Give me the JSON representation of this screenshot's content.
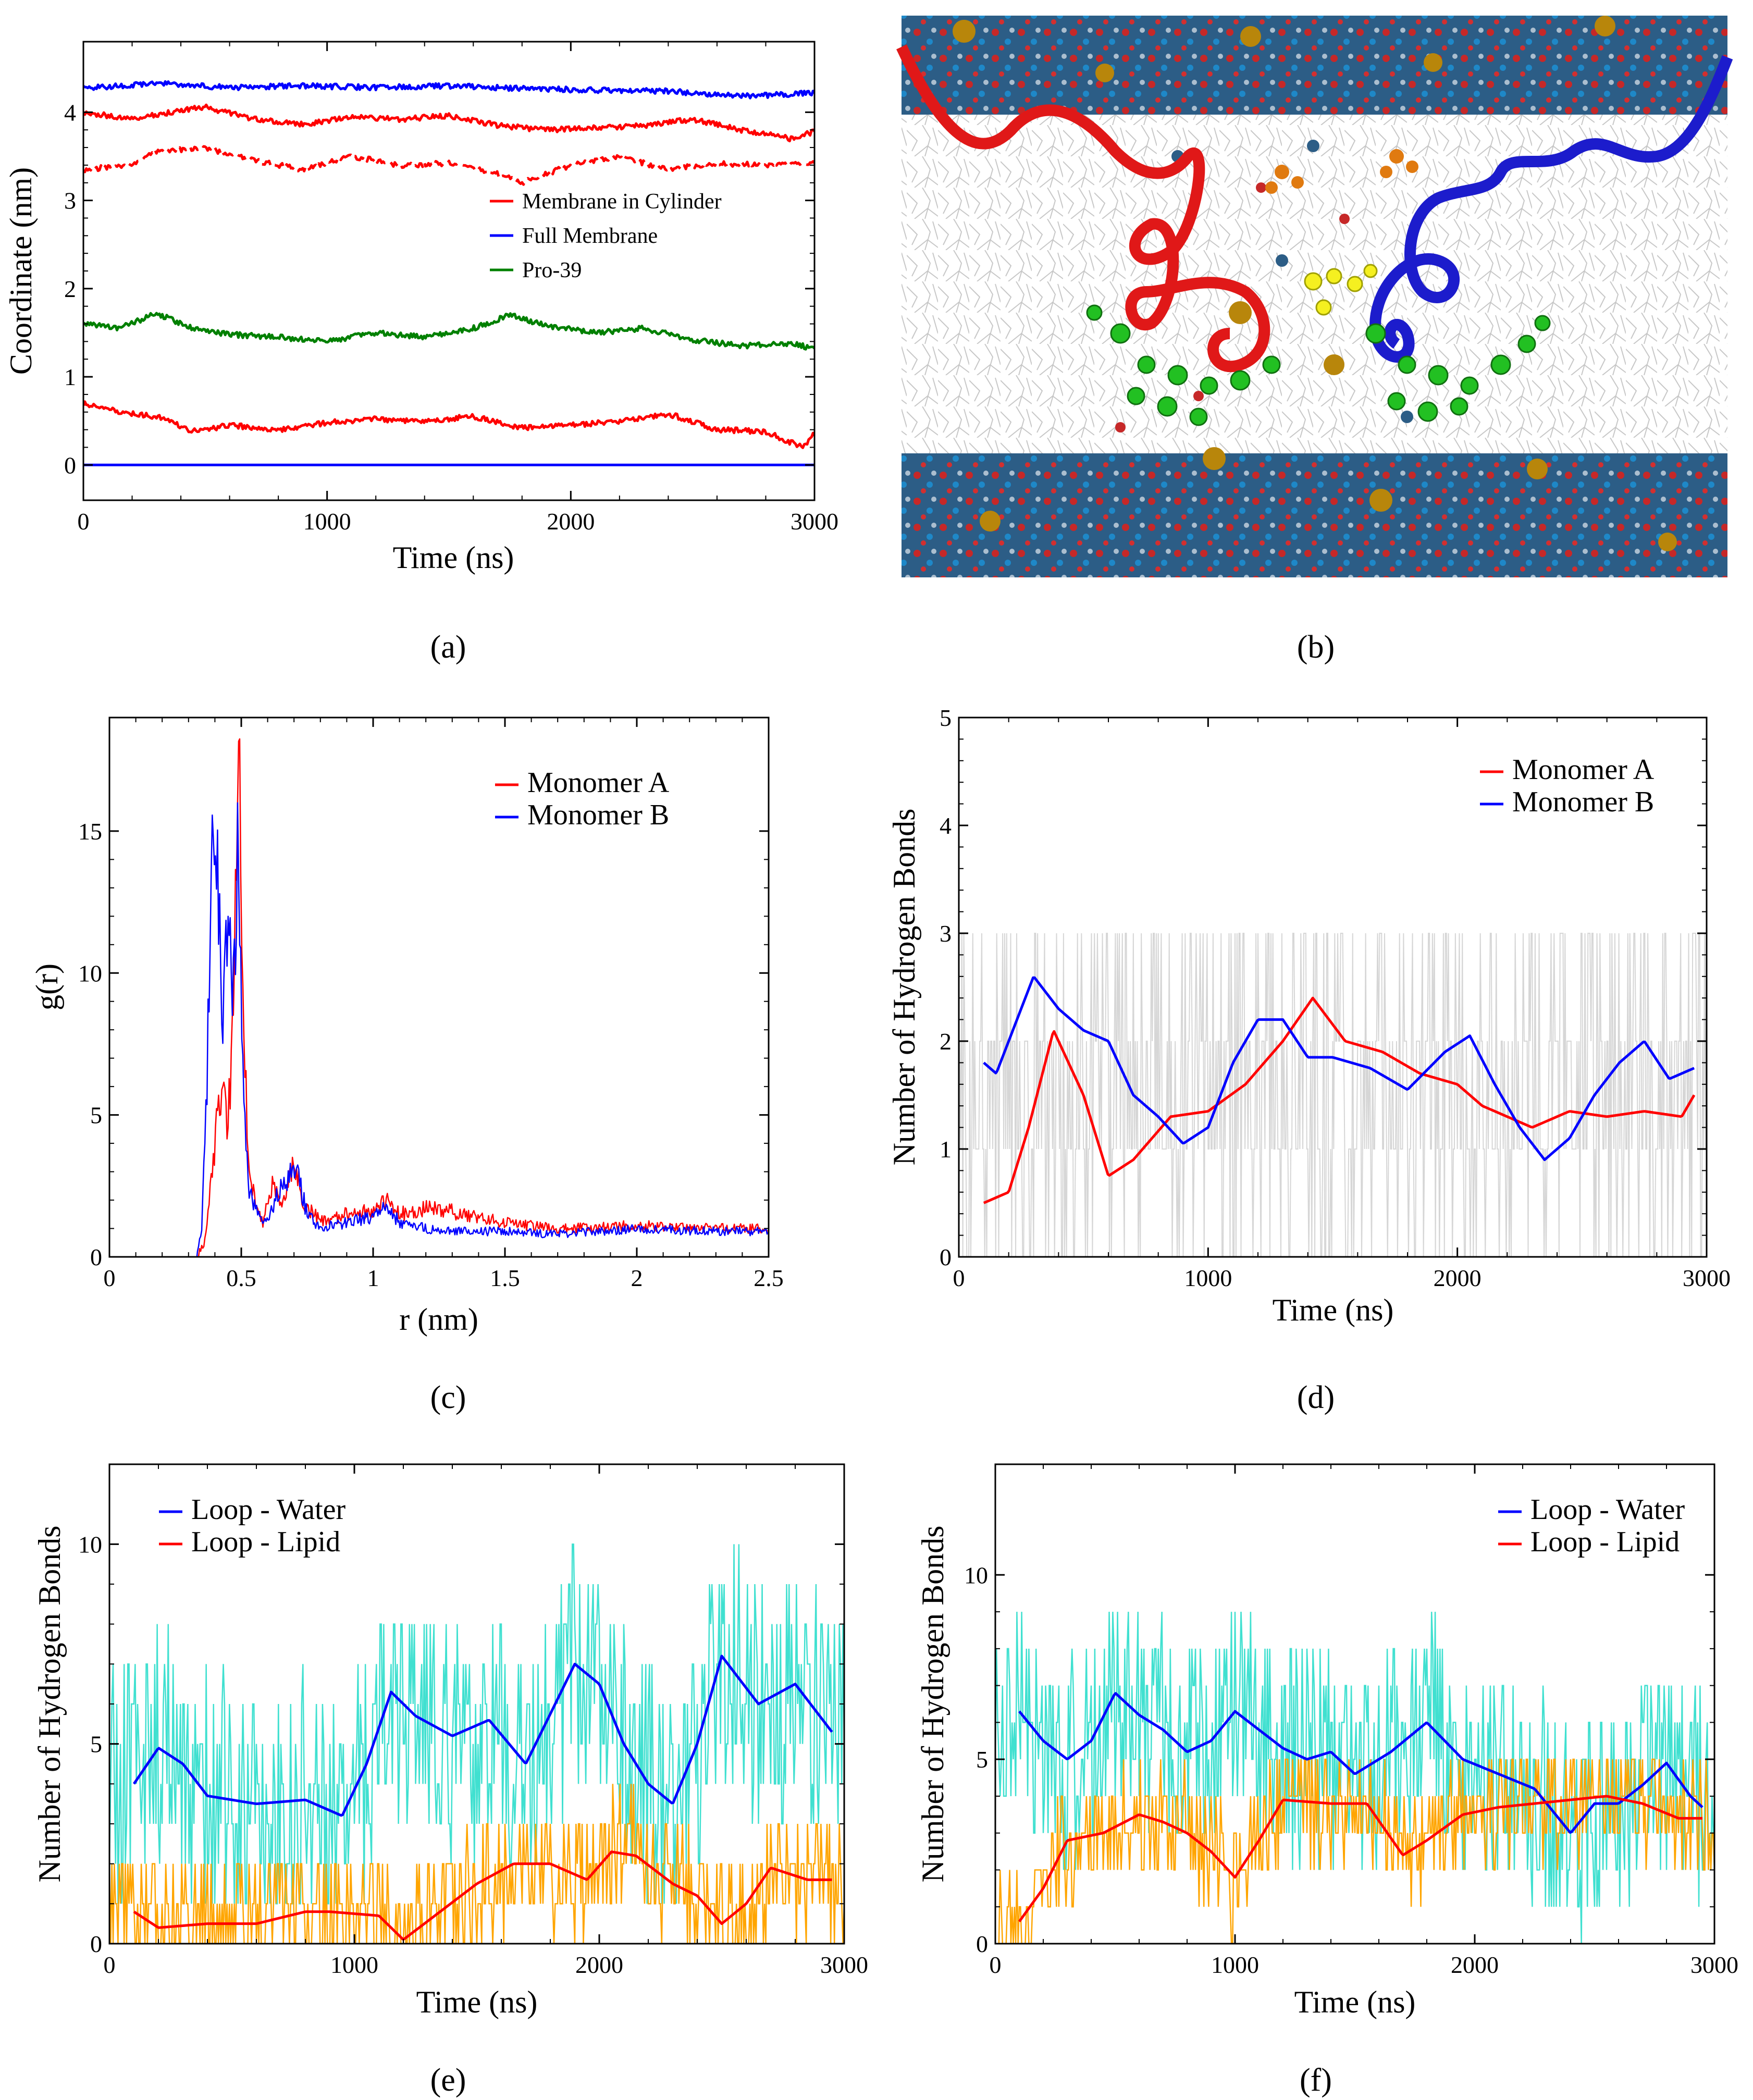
{
  "captions": {
    "a": "(a)",
    "b": "(b)",
    "c": "(c)",
    "d": "(d)",
    "e": "(e)",
    "f": "(f)"
  },
  "colors": {
    "red": "#ff0000",
    "blue": "#0000ff",
    "green": "#008000",
    "cyan": "#40e0d0",
    "orange": "#ffa500",
    "gray": "#d6d6d6"
  },
  "chart_data": [
    {
      "id": "a",
      "type": "line",
      "title": "",
      "xlabel": "Time (ns)",
      "ylabel": "Coordinate (nm)",
      "xlim": [
        0,
        3000
      ],
      "ylim": [
        -0.4,
        4.8
      ],
      "xticks": [
        0,
        1000,
        2000,
        3000
      ],
      "yticks": [
        0,
        1,
        2,
        3,
        4
      ],
      "legend": [
        "Membrane in Cylinder",
        "Full Membrane",
        "Pro-39"
      ],
      "series": [
        {
          "name": "Full Membrane top",
          "legend": 1,
          "color": "#0000ff",
          "x": [
            0,
            300,
            600,
            900,
            1200,
            1500,
            1800,
            2100,
            2400,
            2700,
            3000
          ],
          "y": [
            4.27,
            4.33,
            4.28,
            4.3,
            4.28,
            4.3,
            4.27,
            4.25,
            4.24,
            4.18,
            4.22
          ]
        },
        {
          "name": "Membrane in Cylinder top",
          "legend": 0,
          "color": "#ff0000",
          "x": [
            0,
            200,
            400,
            500,
            700,
            900,
            1100,
            1300,
            1500,
            1700,
            1900,
            2100,
            2300,
            2500,
            2700,
            2900,
            3000
          ],
          "y": [
            4.0,
            3.92,
            4.02,
            4.06,
            3.92,
            3.86,
            3.95,
            3.92,
            3.96,
            3.85,
            3.8,
            3.82,
            3.85,
            3.92,
            3.8,
            3.7,
            3.78
          ]
        },
        {
          "name": "Membrane in Cylinder upper (dashed)",
          "legend": 0,
          "dashed": true,
          "color": "#ff0000",
          "x": [
            0,
            200,
            300,
            500,
            700,
            900,
            1100,
            1300,
            1500,
            1700,
            1800,
            2000,
            2200,
            2400,
            2600,
            2800,
            3000
          ],
          "y": [
            3.35,
            3.4,
            3.55,
            3.6,
            3.45,
            3.35,
            3.5,
            3.4,
            3.42,
            3.3,
            3.2,
            3.4,
            3.5,
            3.35,
            3.42,
            3.4,
            3.42
          ]
        },
        {
          "name": "Pro-39",
          "legend": 2,
          "color": "#008000",
          "x": [
            0,
            150,
            300,
            450,
            600,
            800,
            1000,
            1200,
            1400,
            1600,
            1750,
            1900,
            2100,
            2300,
            2500,
            2700,
            2900,
            3000
          ],
          "y": [
            1.6,
            1.55,
            1.72,
            1.55,
            1.48,
            1.45,
            1.4,
            1.5,
            1.45,
            1.55,
            1.7,
            1.58,
            1.5,
            1.55,
            1.42,
            1.35,
            1.38,
            1.32
          ]
        },
        {
          "name": "Membrane in Cylinder bottom",
          "legend": 0,
          "color": "#ff0000",
          "x": [
            0,
            150,
            300,
            450,
            600,
            800,
            1000,
            1200,
            1400,
            1600,
            1800,
            2000,
            2200,
            2400,
            2600,
            2800,
            2950,
            3000
          ],
          "y": [
            0.7,
            0.6,
            0.55,
            0.38,
            0.45,
            0.4,
            0.48,
            0.52,
            0.5,
            0.55,
            0.42,
            0.45,
            0.5,
            0.58,
            0.4,
            0.38,
            0.2,
            0.35
          ]
        },
        {
          "name": "Full Membrane bottom",
          "legend": 1,
          "color": "#0000ff",
          "x": [
            0,
            3000
          ],
          "y": [
            0.0,
            0.0
          ]
        }
      ]
    },
    {
      "id": "c",
      "type": "line",
      "title": "",
      "xlabel": "r (nm)",
      "ylabel": "g(r)",
      "xlim": [
        0,
        2.5
      ],
      "ylim": [
        0,
        19
      ],
      "xticks": [
        0,
        0.5,
        1,
        1.5,
        2,
        2.5
      ],
      "yticks": [
        0,
        5,
        10,
        15
      ],
      "legend": [
        "Monomer A",
        "Monomer B"
      ],
      "series": [
        {
          "name": "Monomer A",
          "color": "#ff0000",
          "x": [
            0.33,
            0.36,
            0.39,
            0.42,
            0.45,
            0.47,
            0.49,
            0.51,
            0.53,
            0.55,
            0.58,
            0.62,
            0.66,
            0.7,
            0.74,
            0.8,
            0.9,
            1.0,
            1.05,
            1.1,
            1.2,
            1.3,
            1.5,
            1.7,
            2.0,
            2.3,
            2.5
          ],
          "y": [
            0,
            0.5,
            3.0,
            6.0,
            4.5,
            9.0,
            18.8,
            8.0,
            3.0,
            2.0,
            1.2,
            2.5,
            2.0,
            3.2,
            1.8,
            1.3,
            1.5,
            1.6,
            2.0,
            1.5,
            1.7,
            1.6,
            1.2,
            1.0,
            1.1,
            1.0,
            1.0
          ]
        },
        {
          "name": "Monomer B",
          "color": "#0000ff",
          "x": [
            0.33,
            0.35,
            0.37,
            0.39,
            0.41,
            0.43,
            0.45,
            0.47,
            0.49,
            0.51,
            0.53,
            0.56,
            0.6,
            0.64,
            0.68,
            0.71,
            0.75,
            0.8,
            0.9,
            1.0,
            1.05,
            1.1,
            1.2,
            1.3,
            1.5,
            1.7,
            2.0,
            2.3,
            2.5
          ],
          "y": [
            0,
            1.0,
            6.0,
            15.3,
            13.5,
            8.0,
            12.0,
            9.0,
            15.2,
            5.0,
            2.5,
            1.5,
            1.3,
            2.2,
            2.8,
            3.0,
            1.5,
            1.0,
            1.2,
            1.4,
            1.8,
            1.2,
            1.0,
            0.9,
            0.9,
            0.8,
            1.0,
            0.9,
            0.9
          ]
        }
      ]
    },
    {
      "id": "d",
      "type": "line",
      "title": "",
      "xlabel": "Time (ns)",
      "ylabel": "Number of Hydrogen Bonds",
      "xlim": [
        0,
        3000
      ],
      "ylim": [
        0,
        5
      ],
      "xticks": [
        0,
        1000,
        2000,
        3000
      ],
      "yticks": [
        0,
        1,
        2,
        3,
        4,
        5
      ],
      "legend": [
        "Monomer A",
        "Monomer B"
      ],
      "series": [
        {
          "name": "Monomer A",
          "color": "#ff0000",
          "x": [
            100,
            200,
            280,
            380,
            500,
            600,
            700,
            850,
            1000,
            1150,
            1300,
            1420,
            1550,
            1700,
            1850,
            2000,
            2100,
            2200,
            2300,
            2450,
            2600,
            2750,
            2900,
            2950
          ],
          "y": [
            0.5,
            0.6,
            1.2,
            2.1,
            1.5,
            0.75,
            0.9,
            1.3,
            1.35,
            1.6,
            2.0,
            2.4,
            2.0,
            1.9,
            1.7,
            1.6,
            1.4,
            1.3,
            1.2,
            1.35,
            1.3,
            1.35,
            1.3,
            1.5
          ]
        },
        {
          "name": "Monomer B",
          "color": "#0000ff",
          "x": [
            100,
            150,
            200,
            300,
            400,
            500,
            600,
            700,
            800,
            900,
            1000,
            1100,
            1200,
            1300,
            1400,
            1500,
            1650,
            1800,
            1950,
            2050,
            2150,
            2250,
            2350,
            2450,
            2550,
            2650,
            2750,
            2850,
            2950
          ],
          "y": [
            1.8,
            1.7,
            2.0,
            2.6,
            2.3,
            2.1,
            2.0,
            1.5,
            1.3,
            1.05,
            1.2,
            1.8,
            2.2,
            2.2,
            1.85,
            1.85,
            1.75,
            1.55,
            1.9,
            2.05,
            1.6,
            1.2,
            0.9,
            1.1,
            1.5,
            1.8,
            2.0,
            1.65,
            1.75
          ]
        }
      ]
    },
    {
      "id": "e",
      "type": "line",
      "title": "",
      "xlabel": "Time (ns)",
      "ylabel": "Number of Hydrogen Bonds",
      "xlim": [
        0,
        3000
      ],
      "ylim": [
        0,
        12
      ],
      "xticks": [
        0,
        1000,
        2000,
        3000
      ],
      "yticks": [
        0,
        5,
        10
      ],
      "legend": [
        "Loop - Water",
        "Loop - Lipid"
      ],
      "series": [
        {
          "name": "Loop - Water",
          "color": "#0000ff",
          "x": [
            100,
            200,
            300,
            400,
            600,
            800,
            950,
            1050,
            1150,
            1250,
            1400,
            1550,
            1700,
            1900,
            2000,
            2100,
            2200,
            2300,
            2400,
            2500,
            2650,
            2800,
            2950
          ],
          "y": [
            4.0,
            4.9,
            4.5,
            3.7,
            3.5,
            3.6,
            3.2,
            4.5,
            6.3,
            5.7,
            5.2,
            5.6,
            4.5,
            7.0,
            6.5,
            5.0,
            4.0,
            3.5,
            5.0,
            7.2,
            6.0,
            6.5,
            5.3
          ]
        },
        {
          "name": "Loop - Lipid",
          "color": "#ff0000",
          "x": [
            100,
            200,
            400,
            600,
            800,
            900,
            1100,
            1200,
            1350,
            1500,
            1650,
            1800,
            1950,
            2050,
            2150,
            2300,
            2400,
            2500,
            2600,
            2700,
            2850,
            2950
          ],
          "y": [
            0.8,
            0.4,
            0.5,
            0.5,
            0.8,
            0.8,
            0.7,
            0.1,
            0.8,
            1.5,
            2.0,
            2.0,
            1.6,
            2.3,
            2.2,
            1.5,
            1.2,
            0.5,
            1.0,
            1.9,
            1.6,
            1.6
          ]
        }
      ]
    },
    {
      "id": "f",
      "type": "line",
      "title": "",
      "xlabel": "Time (ns)",
      "ylabel": "Number of Hydrogen Bonds",
      "xlim": [
        0,
        3000
      ],
      "ylim": [
        0,
        13
      ],
      "xticks": [
        0,
        1000,
        2000,
        3000
      ],
      "yticks": [
        0,
        5,
        10
      ],
      "legend": [
        "Loop - Water",
        "Loop - Lipid"
      ],
      "series": [
        {
          "name": "Loop - Water",
          "color": "#0000ff",
          "x": [
            100,
            200,
            300,
            400,
            500,
            600,
            700,
            800,
            900,
            1000,
            1100,
            1200,
            1300,
            1400,
            1500,
            1650,
            1800,
            1950,
            2100,
            2250,
            2400,
            2500,
            2600,
            2700,
            2800,
            2900,
            2950
          ],
          "y": [
            6.3,
            5.5,
            5.0,
            5.5,
            6.8,
            6.2,
            5.8,
            5.2,
            5.5,
            6.3,
            5.8,
            5.3,
            5.0,
            5.2,
            4.6,
            5.2,
            6.0,
            5.0,
            4.6,
            4.2,
            3.0,
            3.8,
            3.8,
            4.3,
            4.9,
            4.0,
            3.7
          ]
        },
        {
          "name": "Loop - Lipid",
          "color": "#ff0000",
          "x": [
            100,
            200,
            300,
            450,
            600,
            700,
            800,
            900,
            1000,
            1100,
            1200,
            1400,
            1550,
            1700,
            1800,
            1950,
            2100,
            2250,
            2400,
            2550,
            2700,
            2850,
            2950
          ],
          "y": [
            0.6,
            1.5,
            2.8,
            3.0,
            3.5,
            3.3,
            3.0,
            2.5,
            1.8,
            2.8,
            3.9,
            3.8,
            3.8,
            2.4,
            2.8,
            3.5,
            3.7,
            3.8,
            3.9,
            4.0,
            3.8,
            3.4,
            3.4
          ]
        }
      ]
    }
  ]
}
